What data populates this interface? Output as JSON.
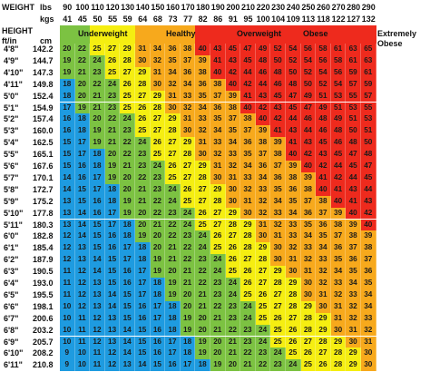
{
  "chart_data": {
    "type": "table",
    "title": "",
    "header_labels": {
      "weight": "WEIGHT",
      "lbs": "lbs",
      "kgs": "kgs",
      "height": "HEIGHT",
      "ftin": "ft/in",
      "cm": "cm"
    },
    "weight_lbs": [
      "90",
      "100",
      "110",
      "120",
      "130",
      "140",
      "150",
      "160",
      "170",
      "180",
      "190",
      "200",
      "210",
      "220",
      "230",
      "240",
      "250",
      "260",
      "270",
      "280",
      "290"
    ],
    "weight_kgs": [
      "41",
      "45",
      "50",
      "55",
      "59",
      "64",
      "68",
      "73",
      "77",
      "82",
      "86",
      "91",
      "95",
      "100",
      "104",
      "109",
      "113",
      "118",
      "122",
      "127",
      "132"
    ],
    "height_ftin": [
      "4'8\"",
      "4'9\"",
      "4'10\"",
      "4'11\"",
      "5'0\"",
      "5'1\"",
      "5'2\"",
      "5'3\"",
      "5'4\"",
      "5'5\"",
      "5'6\"",
      "5'7\"",
      "5'8\"",
      "5'9\"",
      "5'10\"",
      "5'11\"",
      "6'0\"",
      "6'1\"",
      "6'2\"",
      "6'3\"",
      "6'4\"",
      "6'5\"",
      "6'6\"",
      "6'7\"",
      "6'8\"",
      "6'9\"",
      "6'10\"",
      "6'11\""
    ],
    "height_cm": [
      "142.2",
      "144.7",
      "147.3",
      "149.8",
      "152.4",
      "154.9",
      "157.4",
      "160.0",
      "162.5",
      "165.1",
      "167.6",
      "170.1",
      "172.7",
      "175.2",
      "177.8",
      "180.3",
      "182.8",
      "185.4",
      "187.9",
      "190.5",
      "193.0",
      "195.5",
      "198.1",
      "200.6",
      "203.2",
      "205.7",
      "208.2",
      "210.8"
    ],
    "bmi_values": [
      [
        "20",
        "22",
        "25",
        "27",
        "29",
        "31",
        "34",
        "36",
        "38",
        "40",
        "43",
        "45",
        "47",
        "49",
        "52",
        "54",
        "56",
        "58",
        "61",
        "63",
        "65"
      ],
      [
        "19",
        "22",
        "24",
        "26",
        "28",
        "30",
        "32",
        "35",
        "37",
        "39",
        "41",
        "43",
        "45",
        "48",
        "50",
        "52",
        "54",
        "56",
        "58",
        "61",
        "63"
      ],
      [
        "19",
        "21",
        "23",
        "25",
        "27",
        "29",
        "31",
        "34",
        "36",
        "38",
        "40",
        "42",
        "44",
        "46",
        "48",
        "50",
        "52",
        "54",
        "56",
        "59",
        "61"
      ],
      [
        "18",
        "20",
        "22",
        "24",
        "26",
        "28",
        "30",
        "32",
        "34",
        "36",
        "38",
        "40",
        "42",
        "44",
        "46",
        "48",
        "50",
        "52",
        "54",
        "57",
        "59"
      ],
      [
        "18",
        "20",
        "21",
        "23",
        "25",
        "27",
        "29",
        "31",
        "33",
        "35",
        "37",
        "39",
        "41",
        "43",
        "45",
        "47",
        "49",
        "51",
        "53",
        "55",
        "57"
      ],
      [
        "17",
        "19",
        "21",
        "23",
        "25",
        "26",
        "28",
        "30",
        "32",
        "34",
        "36",
        "38",
        "40",
        "42",
        "43",
        "45",
        "47",
        "49",
        "51",
        "53",
        "55"
      ],
      [
        "16",
        "18",
        "20",
        "22",
        "24",
        "26",
        "27",
        "29",
        "31",
        "33",
        "35",
        "37",
        "38",
        "40",
        "42",
        "44",
        "46",
        "48",
        "49",
        "51",
        "53"
      ],
      [
        "16",
        "18",
        "19",
        "21",
        "23",
        "25",
        "27",
        "28",
        "30",
        "32",
        "34",
        "35",
        "37",
        "39",
        "41",
        "43",
        "44",
        "46",
        "48",
        "50",
        "51"
      ],
      [
        "15",
        "17",
        "19",
        "21",
        "22",
        "24",
        "26",
        "27",
        "29",
        "31",
        "33",
        "34",
        "36",
        "38",
        "39",
        "41",
        "43",
        "45",
        "46",
        "48",
        "50"
      ],
      [
        "15",
        "17",
        "18",
        "20",
        "22",
        "23",
        "25",
        "27",
        "28",
        "30",
        "32",
        "33",
        "35",
        "37",
        "38",
        "40",
        "42",
        "43",
        "45",
        "47",
        "48"
      ],
      [
        "15",
        "16",
        "18",
        "19",
        "21",
        "23",
        "24",
        "26",
        "27",
        "29",
        "31",
        "32",
        "34",
        "36",
        "37",
        "39",
        "40",
        "42",
        "44",
        "45",
        "47"
      ],
      [
        "14",
        "16",
        "17",
        "19",
        "20",
        "22",
        "23",
        "25",
        "27",
        "28",
        "30",
        "31",
        "33",
        "34",
        "36",
        "38",
        "39",
        "41",
        "42",
        "44",
        "45"
      ],
      [
        "14",
        "15",
        "17",
        "18",
        "20",
        "21",
        "23",
        "24",
        "26",
        "27",
        "29",
        "30",
        "32",
        "33",
        "35",
        "36",
        "38",
        "40",
        "41",
        "43",
        "44"
      ],
      [
        "13",
        "15",
        "16",
        "18",
        "19",
        "21",
        "22",
        "24",
        "25",
        "27",
        "28",
        "30",
        "31",
        "32",
        "34",
        "35",
        "37",
        "38",
        "40",
        "41",
        "43"
      ],
      [
        "13",
        "14",
        "16",
        "17",
        "19",
        "20",
        "22",
        "23",
        "24",
        "26",
        "27",
        "29",
        "30",
        "32",
        "33",
        "34",
        "36",
        "37",
        "39",
        "40",
        "42"
      ],
      [
        "13",
        "14",
        "15",
        "17",
        "18",
        "20",
        "21",
        "22",
        "24",
        "25",
        "27",
        "28",
        "29",
        "31",
        "32",
        "33",
        "35",
        "36",
        "38",
        "39",
        "40"
      ],
      [
        "12",
        "14",
        "15",
        "16",
        "18",
        "19",
        "20",
        "22",
        "23",
        "24",
        "26",
        "27",
        "28",
        "30",
        "31",
        "33",
        "34",
        "35",
        "37",
        "38",
        "39"
      ],
      [
        "12",
        "13",
        "15",
        "16",
        "17",
        "18",
        "20",
        "21",
        "22",
        "24",
        "25",
        "26",
        "28",
        "29",
        "30",
        "32",
        "33",
        "34",
        "36",
        "37",
        "38"
      ],
      [
        "12",
        "13",
        "14",
        "15",
        "17",
        "18",
        "19",
        "21",
        "22",
        "23",
        "24",
        "26",
        "27",
        "28",
        "30",
        "31",
        "32",
        "33",
        "35",
        "36",
        "37"
      ],
      [
        "11",
        "12",
        "14",
        "15",
        "16",
        "17",
        "19",
        "20",
        "21",
        "22",
        "24",
        "25",
        "26",
        "27",
        "29",
        "30",
        "31",
        "32",
        "34",
        "35",
        "36"
      ],
      [
        "11",
        "12",
        "13",
        "15",
        "16",
        "17",
        "18",
        "19",
        "21",
        "22",
        "23",
        "24",
        "26",
        "27",
        "28",
        "29",
        "30",
        "32",
        "33",
        "34",
        "35"
      ],
      [
        "11",
        "12",
        "13",
        "14",
        "15",
        "17",
        "18",
        "19",
        "20",
        "21",
        "23",
        "24",
        "25",
        "26",
        "27",
        "28",
        "30",
        "31",
        "32",
        "33",
        "34"
      ],
      [
        "10",
        "12",
        "13",
        "14",
        "15",
        "16",
        "17",
        "18",
        "20",
        "21",
        "22",
        "23",
        "24",
        "25",
        "27",
        "28",
        "29",
        "30",
        "31",
        "32",
        "34"
      ],
      [
        "10",
        "11",
        "12",
        "13",
        "15",
        "16",
        "17",
        "18",
        "19",
        "20",
        "21",
        "23",
        "24",
        "25",
        "26",
        "27",
        "28",
        "29",
        "31",
        "32",
        "33"
      ],
      [
        "10",
        "11",
        "12",
        "13",
        "14",
        "15",
        "16",
        "18",
        "19",
        "20",
        "21",
        "22",
        "23",
        "24",
        "25",
        "26",
        "28",
        "29",
        "30",
        "31",
        "32"
      ],
      [
        "10",
        "11",
        "12",
        "13",
        "14",
        "15",
        "16",
        "17",
        "18",
        "19",
        "20",
        "21",
        "23",
        "24",
        "25",
        "26",
        "27",
        "28",
        "29",
        "30",
        "31"
      ],
      [
        "9",
        "10",
        "11",
        "12",
        "14",
        "15",
        "16",
        "17",
        "18",
        "19",
        "20",
        "21",
        "22",
        "23",
        "24",
        "25",
        "26",
        "27",
        "28",
        "29",
        "30"
      ],
      [
        "9",
        "10",
        "11",
        "12",
        "13",
        "14",
        "15",
        "16",
        "17",
        "18",
        "19",
        "20",
        "21",
        "22",
        "23",
        "24",
        "25",
        "26",
        "28",
        "29",
        "30"
      ]
    ],
    "categories": [
      {
        "label": "Underweight",
        "min": 0,
        "max": 18.5,
        "color": "#1e9be0"
      },
      {
        "label": "Healthy",
        "min": 18.5,
        "max": 25,
        "color": "#7cc242"
      },
      {
        "label": "Overweight",
        "min": 25,
        "max": 30,
        "color": "#f5ee11"
      },
      {
        "label": "Obese",
        "min": 30,
        "max": 40,
        "color": "#f7a91c"
      },
      {
        "label": "Extremely Obese",
        "min": 40,
        "max": 1000,
        "color": "#ee2a1d"
      }
    ]
  }
}
